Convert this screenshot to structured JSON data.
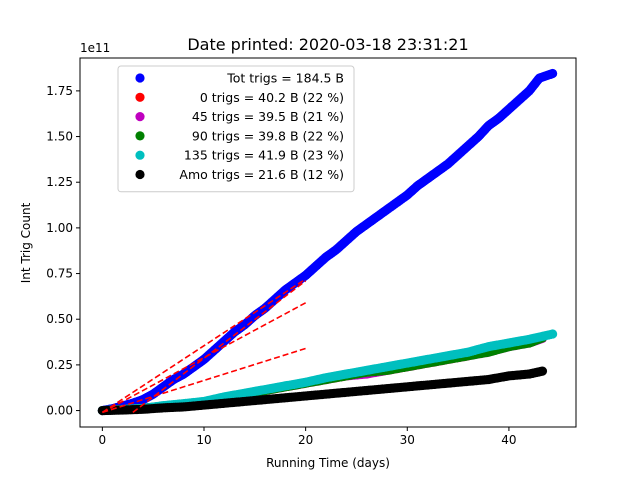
{
  "chart_data": {
    "type": "scatter",
    "title": "Date printed: 2020-03-18 23:31:21",
    "xlabel": "Running Time (days)",
    "ylabel": "Int Trig Count",
    "y_offset_text": "1e11",
    "xlim": [
      -2.2,
      46.6
    ],
    "ylim": [
      -0.09,
      1.93
    ],
    "x_ticks": [
      0,
      10,
      20,
      30,
      40
    ],
    "x_tick_labels": [
      "0",
      "10",
      "20",
      "30",
      "40"
    ],
    "y_ticks": [
      0,
      0.25,
      0.5,
      0.75,
      1.0,
      1.25,
      1.5,
      1.75
    ],
    "y_tick_labels": [
      "0.00",
      "0.25",
      "0.50",
      "0.75",
      "1.00",
      "1.25",
      "1.50",
      "1.75"
    ],
    "grid": false,
    "legend_position": "top-left",
    "series": [
      {
        "name": "Tot trigs = 184.5 B",
        "color": "#0000ff",
        "x": [
          0,
          1,
          2,
          3,
          4,
          5,
          6,
          7,
          8,
          9,
          10,
          11,
          12,
          13,
          14,
          15,
          16,
          17,
          18,
          19,
          20,
          21,
          22,
          23,
          24,
          25,
          26,
          27,
          28,
          29,
          30,
          31,
          32,
          33,
          34,
          35,
          36,
          37,
          38,
          39,
          40,
          41,
          42,
          43,
          44.3
        ],
        "y": [
          0.0,
          0.01,
          0.025,
          0.04,
          0.06,
          0.09,
          0.13,
          0.17,
          0.2,
          0.24,
          0.28,
          0.33,
          0.38,
          0.43,
          0.47,
          0.52,
          0.56,
          0.61,
          0.66,
          0.7,
          0.74,
          0.79,
          0.84,
          0.88,
          0.93,
          0.98,
          1.02,
          1.06,
          1.1,
          1.14,
          1.18,
          1.23,
          1.27,
          1.31,
          1.35,
          1.4,
          1.45,
          1.5,
          1.56,
          1.6,
          1.65,
          1.7,
          1.75,
          1.82,
          1.845
        ]
      },
      {
        "name": "0 trigs = 40.2 B (22 %)",
        "color": "#ff0000",
        "x": [
          0,
          2,
          4,
          6,
          8,
          10,
          12,
          14,
          16,
          18,
          20,
          22,
          24,
          26,
          28,
          30,
          32,
          34,
          36,
          38,
          40,
          42,
          43.3
        ],
        "y": [
          0.0,
          0.006,
          0.012,
          0.025,
          0.035,
          0.045,
          0.07,
          0.09,
          0.11,
          0.13,
          0.15,
          0.17,
          0.19,
          0.21,
          0.22,
          0.24,
          0.26,
          0.28,
          0.3,
          0.33,
          0.36,
          0.38,
          0.4
        ]
      },
      {
        "name": "45 trigs = 39.5 B (21 %)",
        "color": "#bf00bf",
        "x": [
          0,
          2,
          4,
          6,
          8,
          10,
          12,
          14,
          16,
          18,
          20,
          22,
          24,
          26,
          28,
          30,
          32,
          34,
          36,
          38,
          40,
          42,
          43.3
        ],
        "y": [
          0.0,
          0.006,
          0.012,
          0.025,
          0.035,
          0.045,
          0.07,
          0.09,
          0.11,
          0.13,
          0.15,
          0.17,
          0.19,
          0.2,
          0.22,
          0.24,
          0.26,
          0.28,
          0.3,
          0.32,
          0.35,
          0.37,
          0.395
        ]
      },
      {
        "name": "90 trigs = 39.8 B (22 %)",
        "color": "#008000",
        "x": [
          0,
          2,
          4,
          6,
          8,
          10,
          12,
          14,
          16,
          18,
          20,
          22,
          24,
          26,
          28,
          30,
          32,
          34,
          36,
          38,
          40,
          42,
          43.3
        ],
        "y": [
          0.0,
          0.006,
          0.012,
          0.025,
          0.035,
          0.045,
          0.07,
          0.09,
          0.11,
          0.13,
          0.15,
          0.17,
          0.19,
          0.21,
          0.22,
          0.24,
          0.26,
          0.28,
          0.3,
          0.32,
          0.35,
          0.37,
          0.398
        ]
      },
      {
        "name": "135 trigs = 41.9 B (23 %)",
        "color": "#00bfbf",
        "x": [
          0,
          2,
          4,
          6,
          8,
          10,
          12,
          14,
          16,
          18,
          20,
          22,
          24,
          26,
          28,
          30,
          32,
          34,
          36,
          38,
          40,
          42,
          44.3
        ],
        "y": [
          0.0,
          0.006,
          0.012,
          0.027,
          0.038,
          0.05,
          0.075,
          0.095,
          0.115,
          0.135,
          0.155,
          0.18,
          0.2,
          0.22,
          0.24,
          0.26,
          0.28,
          0.3,
          0.32,
          0.35,
          0.37,
          0.39,
          0.419
        ]
      },
      {
        "name": "Amo trigs = 21.6 B (12 %)",
        "color": "#000000",
        "x": [
          0,
          2,
          4,
          6,
          8,
          10,
          12,
          14,
          16,
          18,
          20,
          22,
          24,
          26,
          28,
          30,
          32,
          34,
          36,
          38,
          40,
          42,
          43.3
        ],
        "y": [
          0.0,
          0.003,
          0.007,
          0.015,
          0.02,
          0.03,
          0.04,
          0.05,
          0.06,
          0.07,
          0.08,
          0.09,
          0.1,
          0.11,
          0.12,
          0.13,
          0.14,
          0.15,
          0.16,
          0.17,
          0.19,
          0.2,
          0.216
        ]
      }
    ],
    "fit_lines": [
      {
        "color": "#ff0000",
        "x": [
          0,
          20
        ],
        "y": [
          -0.01,
          0.72
        ]
      },
      {
        "color": "#ff0000",
        "x": [
          0,
          20
        ],
        "y": [
          -0.01,
          0.59
        ]
      },
      {
        "color": "#ff0000",
        "x": [
          0,
          20
        ],
        "y": [
          -0.01,
          0.34
        ]
      },
      {
        "color": "#ff0000",
        "x": [
          3,
          20
        ],
        "y": [
          -0.01,
          0.71
        ]
      }
    ]
  }
}
